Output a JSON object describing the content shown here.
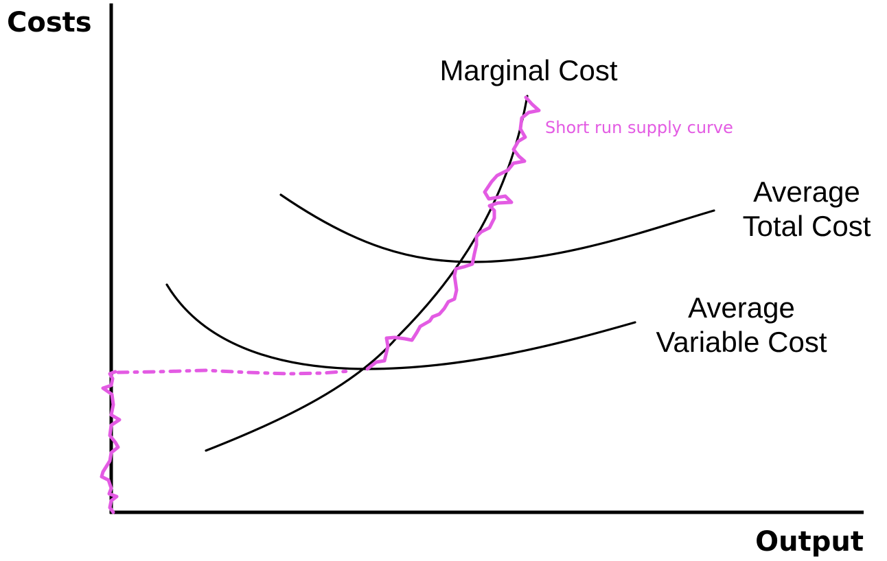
{
  "chart_data": {
    "type": "line",
    "ylabel": "Costs",
    "xlabel": "Output",
    "grid": false,
    "series": [
      {
        "name": "Marginal Cost"
      },
      {
        "name": "Average Total Cost"
      },
      {
        "name": "Average Variable Cost"
      }
    ],
    "annotations": [
      {
        "text": "Short run supply curve",
        "color": "#e35be3"
      }
    ]
  },
  "labels": {
    "y_axis": "Costs",
    "x_axis": "Output",
    "mc": "Marginal Cost",
    "atc_line1": "Average",
    "atc_line2": "Total Cost",
    "avc_line1": "Average",
    "avc_line2": "Variable Cost",
    "supply": "Short run supply curve"
  },
  "colors": {
    "curves": "#000000",
    "highlight": "#e35be3"
  }
}
